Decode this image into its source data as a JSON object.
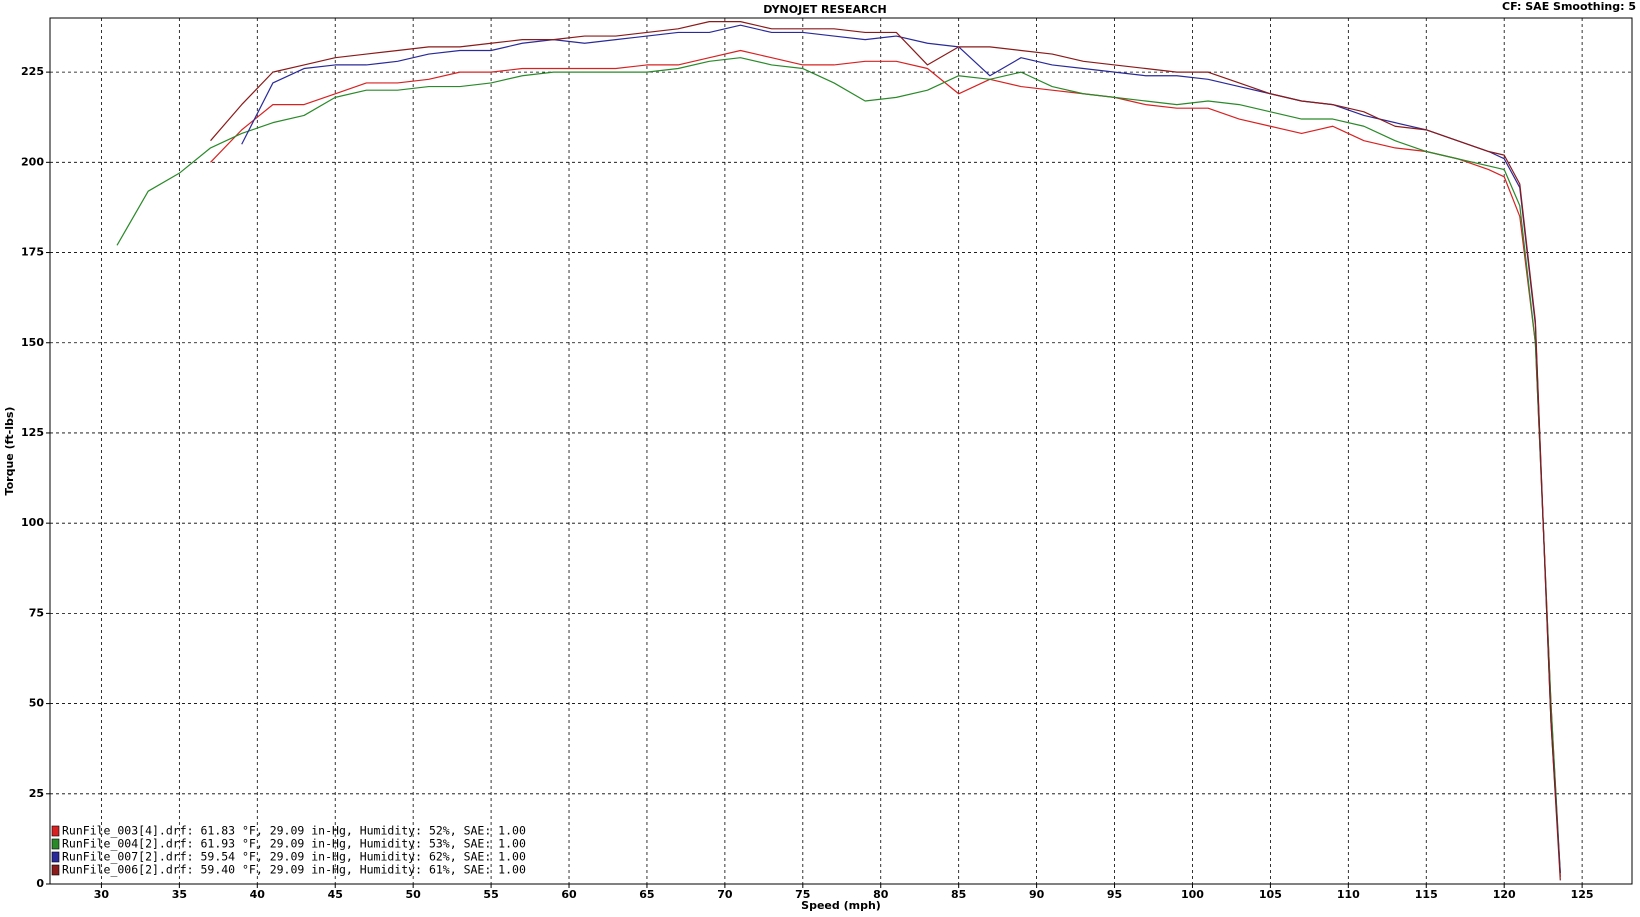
{
  "chart_data": {
    "type": "line",
    "title": "DYNOJET RESEARCH",
    "subtitle": "CF: SAE  Smoothing: 5",
    "x_label": "Speed (mph)",
    "y_label": "Torque (ft-lbs)",
    "x": [
      31,
      33,
      35,
      37,
      39,
      41,
      43,
      45,
      47,
      49,
      51,
      53,
      55,
      57,
      59,
      61,
      63,
      65,
      67,
      69,
      71,
      73,
      75,
      77,
      79,
      81,
      83,
      85,
      87,
      89,
      91,
      93,
      95,
      97,
      99,
      101,
      103,
      105,
      107,
      109,
      111,
      113,
      115,
      117,
      119,
      120,
      121,
      122,
      123,
      123.6
    ],
    "series": [
      {
        "name": "RunFile_003[4].drf: 61.83 °F, 29.09 in-Hg, Humidity: 52%, SAE: 1.00",
        "color": "#d82222",
        "values": [
          null,
          null,
          null,
          200,
          209,
          216,
          216,
          219,
          222,
          222,
          223,
          225,
          225,
          226,
          226,
          226,
          226,
          227,
          227,
          229,
          231,
          229,
          227,
          227,
          228,
          228,
          226,
          219,
          223,
          221,
          220,
          219,
          218,
          216,
          215,
          215,
          212,
          210,
          208,
          210,
          206,
          204,
          203,
          201,
          198,
          196,
          185,
          150,
          50,
          2
        ]
      },
      {
        "name": "RunFile_004[2].drf: 61.93 °F, 29.09 in-Hg, Humidity: 53%, SAE: 1.00",
        "color": "#2a8a2a",
        "values": [
          177,
          192,
          197,
          204,
          208,
          211,
          213,
          218,
          220,
          220,
          221,
          221,
          222,
          224,
          225,
          225,
          225,
          225,
          226,
          228,
          229,
          227,
          226,
          222,
          217,
          218,
          220,
          224,
          223,
          225,
          221,
          219,
          218,
          217,
          216,
          217,
          216,
          214,
          212,
          212,
          210,
          206,
          203,
          201,
          199,
          198,
          188,
          150,
          50,
          3
        ]
      },
      {
        "name": "RunFile_007[2].drf: 59.54 °F, 29.09 in-Hg, Humidity: 62%, SAE: 1.00",
        "color": "#2a2a9a",
        "values": [
          null,
          null,
          null,
          null,
          205,
          222,
          226,
          227,
          227,
          228,
          230,
          231,
          231,
          233,
          234,
          233,
          234,
          235,
          236,
          236,
          238,
          236,
          236,
          235,
          234,
          235,
          233,
          232,
          224,
          229,
          227,
          226,
          225,
          224,
          224,
          223,
          221,
          219,
          217,
          216,
          213,
          211,
          209,
          206,
          203,
          201,
          193,
          155,
          45,
          3
        ]
      },
      {
        "name": "RunFile_006[2].drf: 59.40 °F, 29.09 in-Hg, Humidity: 61%, SAE: 1.00",
        "color": "#8b1a1a",
        "values": [
          null,
          null,
          null,
          206,
          216,
          225,
          227,
          229,
          230,
          231,
          232,
          232,
          233,
          234,
          234,
          235,
          235,
          236,
          237,
          239,
          239,
          237,
          237,
          237,
          236,
          236,
          227,
          232,
          232,
          231,
          230,
          228,
          227,
          226,
          225,
          225,
          222,
          219,
          217,
          216,
          214,
          210,
          209,
          206,
          203,
          202,
          194,
          156,
          45,
          1
        ]
      }
    ],
    "xlim": [
      26.7,
      128.2
    ],
    "ylim": [
      0,
      240
    ],
    "xticks": [
      30,
      35,
      40,
      45,
      50,
      55,
      60,
      65,
      70,
      75,
      80,
      85,
      90,
      95,
      100,
      105,
      110,
      115,
      120,
      125
    ],
    "yticks": [
      0,
      25,
      50,
      75,
      100,
      125,
      150,
      175,
      200,
      225
    ],
    "grid": true,
    "legend": "lower-left"
  }
}
